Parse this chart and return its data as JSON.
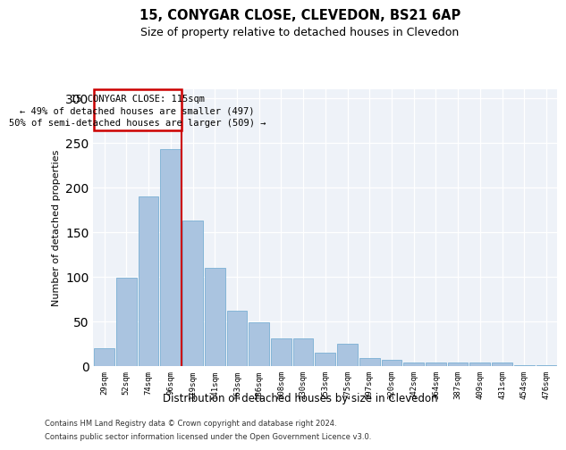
{
  "title1": "15, CONYGAR CLOSE, CLEVEDON, BS21 6AP",
  "title2": "Size of property relative to detached houses in Clevedon",
  "xlabel": "Distribution of detached houses by size in Clevedon",
  "ylabel": "Number of detached properties",
  "footer1": "Contains HM Land Registry data © Crown copyright and database right 2024.",
  "footer2": "Contains public sector information licensed under the Open Government Licence v3.0.",
  "annotation_line1": "15 CONYGAR CLOSE: 115sqm",
  "annotation_line2": "← 49% of detached houses are smaller (497)",
  "annotation_line3": "50% of semi-detached houses are larger (509) →",
  "bar_labels": [
    "29sqm",
    "52sqm",
    "74sqm",
    "96sqm",
    "119sqm",
    "141sqm",
    "163sqm",
    "186sqm",
    "208sqm",
    "230sqm",
    "253sqm",
    "275sqm",
    "297sqm",
    "320sqm",
    "342sqm",
    "364sqm",
    "387sqm",
    "409sqm",
    "431sqm",
    "454sqm",
    "476sqm"
  ],
  "bar_values": [
    20,
    99,
    190,
    243,
    163,
    110,
    62,
    49,
    31,
    31,
    15,
    25,
    9,
    7,
    4,
    4,
    4,
    4,
    4,
    1,
    1
  ],
  "bar_color": "#aac4e0",
  "bar_edgecolor": "#7aafd4",
  "vline_color": "#cc0000",
  "bg_color": "#eef2f8",
  "annotation_box_color": "#cc0000",
  "ylim": [
    0,
    310
  ],
  "yticks": [
    0,
    50,
    100,
    150,
    200,
    250,
    300
  ],
  "title1_fontsize": 10.5,
  "title2_fontsize": 9
}
